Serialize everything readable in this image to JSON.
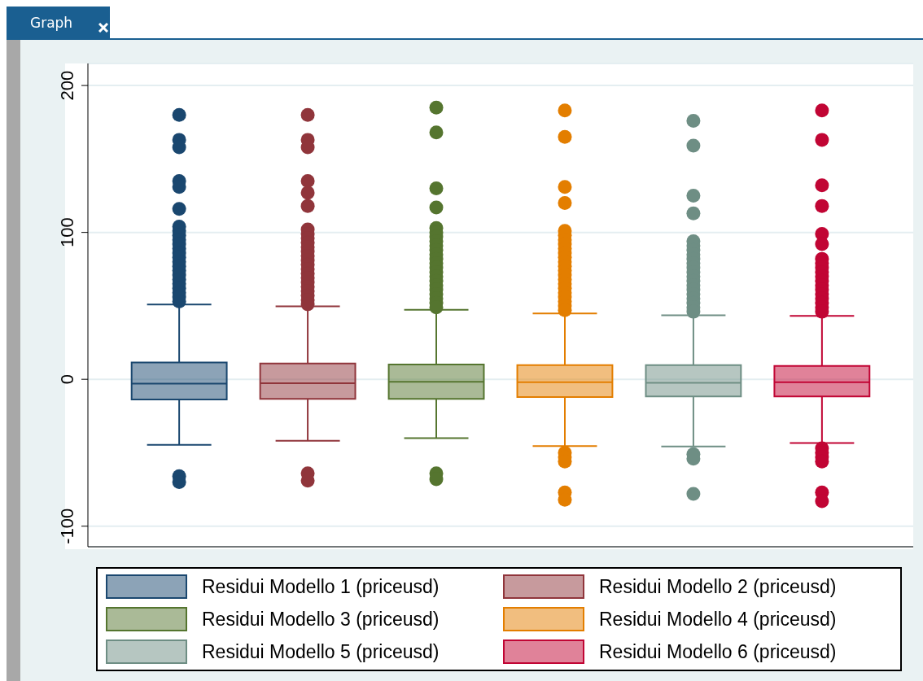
{
  "chart_data": {
    "type": "box",
    "annotations": [
      "Graph"
    ],
    "categories": [
      null
    ],
    "ylim": [
      -114,
      215
    ],
    "yticks": [
      -100,
      0,
      100,
      200
    ],
    "grid": "y",
    "legend": "bottom",
    "marker": "circle",
    "series": [
      {
        "name": "Residui Modello 1 (priceusd)",
        "color": "#1a476f",
        "boxes": [
          {
            "low": -44.6,
            "q1": -13.7,
            "median": -3,
            "q3": 11.4,
            "high": 50.9,
            "outliers": [
              180,
              163,
              158,
              135,
              131,
              116,
              104,
              101,
              98,
              95,
              92,
              89,
              86,
              83,
              80,
              77,
              74,
              71,
              68,
              65,
              62,
              59,
              56,
              53,
              -66,
              -70
            ]
          }
        ]
      },
      {
        "name": "Residui Modello 2 (priceusd)",
        "color": "#90353b",
        "boxes": [
          {
            "low": -41.8,
            "q1": -13.3,
            "median": -2.7,
            "q3": 10.7,
            "high": 49.6,
            "outliers": [
              180,
              163,
              158,
              135,
              127,
              118,
              102,
              99,
              96,
              93,
              90,
              87,
              84,
              81,
              78,
              75,
              72,
              69,
              66,
              63,
              60,
              57,
              54,
              51,
              -64,
              -69
            ]
          }
        ]
      },
      {
        "name": "Residui Modello 3 (priceusd)",
        "color": "#55752f",
        "boxes": [
          {
            "low": -40,
            "q1": -13.3,
            "median": -1.7,
            "q3": 10,
            "high": 47.3,
            "outliers": [
              185,
              168,
              130,
              117,
              103,
              100,
              97,
              94,
              91,
              88,
              85,
              82,
              79,
              76,
              73,
              70,
              67,
              64,
              61,
              58,
              55,
              52,
              49,
              -64,
              -68
            ]
          }
        ]
      },
      {
        "name": "Residui Modello 4 (priceusd)",
        "color": "#e37e00",
        "boxes": [
          {
            "low": -45.4,
            "q1": -12.1,
            "median": -2,
            "q3": 9.7,
            "high": 44.8,
            "outliers": [
              183,
              165,
              131,
              120,
              101,
              98,
              95,
              92,
              89,
              86,
              83,
              80,
              77,
              74,
              71,
              68,
              65,
              62,
              59,
              56,
              53,
              50,
              47,
              -50,
              -53,
              -56,
              -77,
              -82
            ]
          }
        ]
      },
      {
        "name": "Residui Modello 5 (priceusd)",
        "color": "#6e8e84",
        "boxes": [
          {
            "low": -45.8,
            "q1": -11.7,
            "median": -2.4,
            "q3": 9.7,
            "high": 43.6,
            "outliers": [
              176,
              159,
              125,
              113,
              94,
              91,
              88,
              85,
              82,
              79,
              76,
              73,
              70,
              67,
              64,
              61,
              58,
              55,
              52,
              49,
              46,
              -51,
              -54,
              -78
            ]
          }
        ]
      },
      {
        "name": "Residui Modello 6 (priceusd)",
        "color": "#c10534",
        "boxes": [
          {
            "low": -43.4,
            "q1": -11.7,
            "median": -2,
            "q3": 9.1,
            "high": 43.2,
            "outliers": [
              183,
              163,
              132,
              118,
              99,
              92,
              82,
              79,
              76,
              73,
              70,
              67,
              64,
              61,
              58,
              55,
              52,
              49,
              46,
              -47,
              -50,
              -53,
              -56,
              -77,
              -83
            ]
          }
        ]
      }
    ]
  }
}
